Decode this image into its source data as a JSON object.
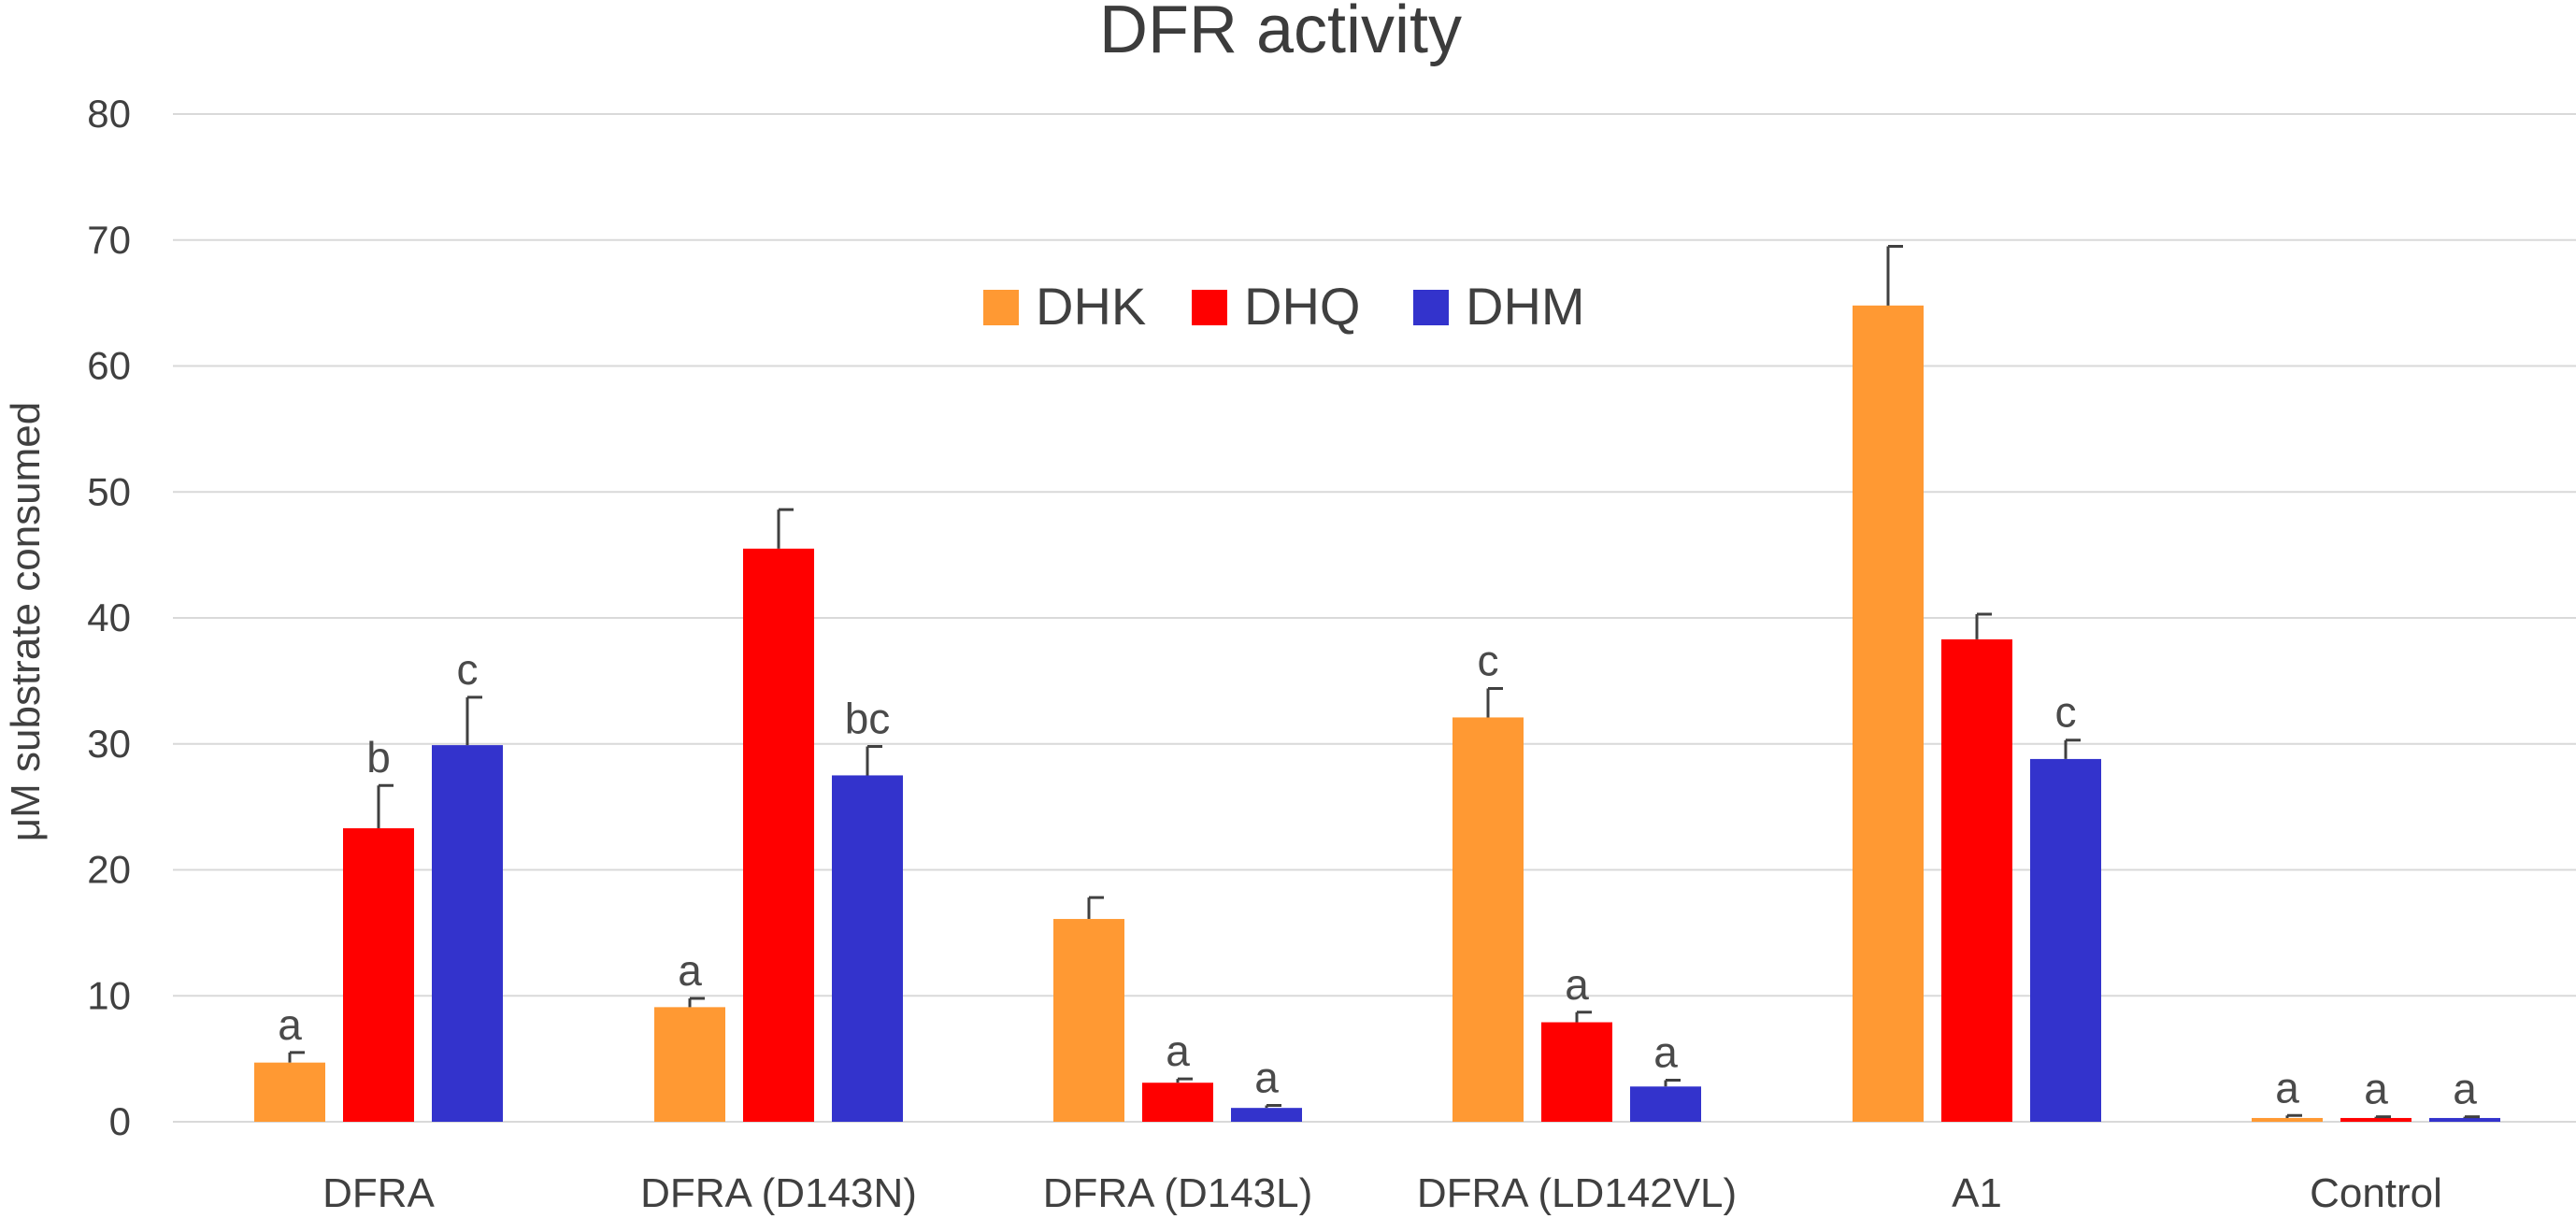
{
  "chart_data": {
    "type": "bar",
    "title": "DFR activity",
    "xlabel": "",
    "ylabel": "μM substrate consumed",
    "ylim": [
      0,
      80
    ],
    "yticks": [
      0,
      10,
      20,
      30,
      40,
      50,
      60,
      70,
      80
    ],
    "grid": true,
    "legend_position": "top-center",
    "categories": [
      "DFRA",
      "DFRA (D143N)",
      "DFRA (D143L)",
      "DFRA (LD142VL)",
      "A1",
      "Control"
    ],
    "series": [
      {
        "name": "DHK",
        "color": "#FF9933",
        "values": [
          4.7,
          9.1,
          16.1,
          32.1,
          64.8,
          0.3
        ],
        "errors": [
          0.8,
          0.7,
          1.7,
          2.3,
          4.7,
          0.2
        ],
        "significance": [
          "a",
          "a",
          "",
          "c",
          "",
          "a"
        ]
      },
      {
        "name": "DHQ",
        "color": "#FF0000",
        "values": [
          23.3,
          45.5,
          3.1,
          7.9,
          38.3,
          0.3
        ],
        "errors": [
          3.4,
          3.1,
          0.3,
          0.8,
          2.0,
          0.1
        ],
        "significance": [
          "b",
          "",
          "a",
          "a",
          "",
          "a"
        ]
      },
      {
        "name": "DHM",
        "color": "#3333CC",
        "values": [
          29.9,
          27.5,
          1.1,
          2.8,
          28.8,
          0.3
        ],
        "errors": [
          3.8,
          2.3,
          0.2,
          0.5,
          1.5,
          0.1
        ],
        "significance": [
          "c",
          "bc",
          "a",
          "a",
          "c",
          "a"
        ]
      }
    ]
  }
}
